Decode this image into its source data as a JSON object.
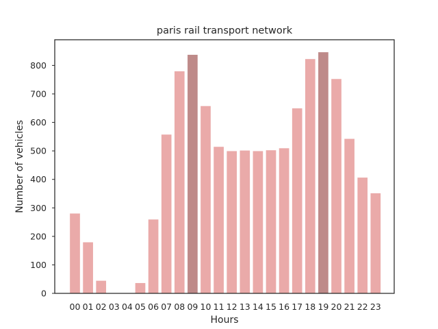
{
  "chart_data": {
    "type": "bar",
    "title": "paris rail transport network",
    "xlabel": "Hours",
    "ylabel": "Number of vehicles",
    "categories": [
      "00",
      "01",
      "02",
      "03",
      "04",
      "05",
      "06",
      "07",
      "08",
      "09",
      "10",
      "11",
      "12",
      "13",
      "14",
      "15",
      "16",
      "17",
      "18",
      "19",
      "20",
      "21",
      "22",
      "23"
    ],
    "values": [
      281,
      180,
      45,
      0,
      0,
      37,
      260,
      558,
      780,
      838,
      658,
      515,
      500,
      502,
      500,
      503,
      510,
      650,
      823,
      847,
      753,
      543,
      407,
      352
    ],
    "highlighted": [
      "09",
      "19"
    ],
    "ylim": [
      0,
      890
    ],
    "yticks": [
      0,
      100,
      200,
      300,
      400,
      500,
      600,
      700,
      800
    ],
    "grid": false,
    "colors": {
      "bar": "#eaaaa9",
      "highlight": "#be8a89",
      "bar_edge": "#ffffff",
      "axis": "#262626"
    }
  }
}
